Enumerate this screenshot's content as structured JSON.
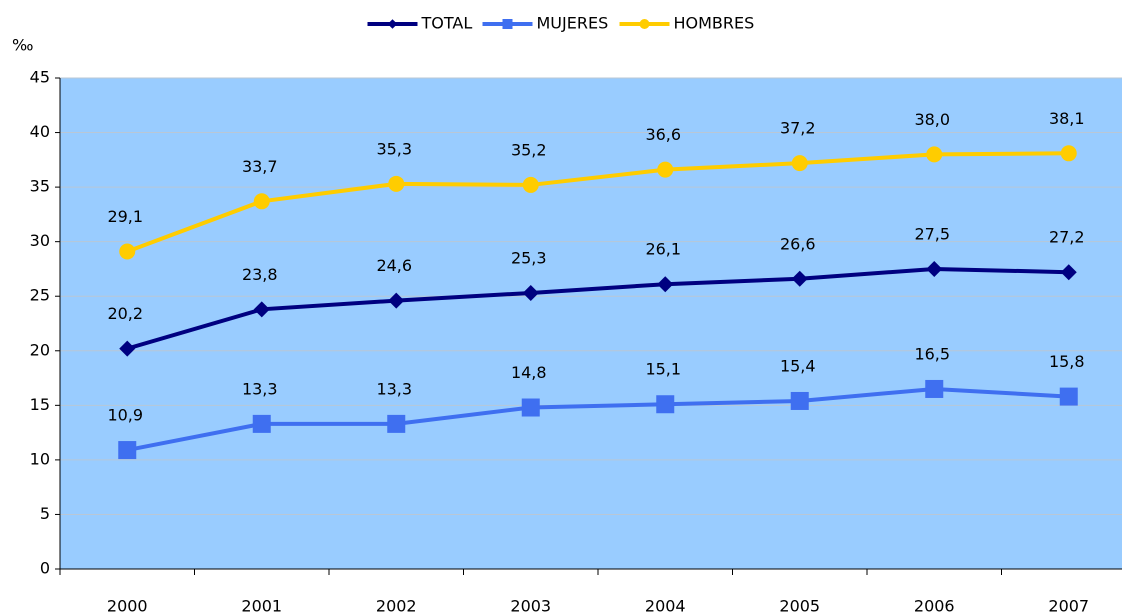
{
  "chart_data": {
    "type": "line",
    "y_label": "‰",
    "categories": [
      "2000",
      "2001",
      "2002",
      "2003",
      "2004",
      "2005",
      "2006",
      "2007"
    ],
    "series": [
      {
        "name": "TOTAL",
        "color": "#000080",
        "marker": "diamond",
        "values": [
          20.2,
          23.8,
          24.6,
          25.3,
          26.1,
          26.6,
          27.5,
          27.2
        ],
        "value_labels": [
          "20,2",
          "23,8",
          "24,6",
          "25,3",
          "26,1",
          "26,6",
          "27,5",
          "27,2"
        ]
      },
      {
        "name": "MUJERES",
        "color": "#3f6ff0",
        "marker": "square",
        "values": [
          10.9,
          13.3,
          13.3,
          14.8,
          15.1,
          15.4,
          16.5,
          15.8
        ],
        "value_labels": [
          "10,9",
          "13,3",
          "13,3",
          "14,8",
          "15,1",
          "15,4",
          "16,5",
          "15,8"
        ]
      },
      {
        "name": "HOMBRES",
        "color": "#ffcc00",
        "marker": "circle",
        "values": [
          29.1,
          33.7,
          35.3,
          35.2,
          36.6,
          37.2,
          38.0,
          38.1
        ],
        "value_labels": [
          "29,1",
          "33,7",
          "35,3",
          "35,2",
          "36,6",
          "37,2",
          "38,0",
          "38,1"
        ]
      }
    ],
    "ylim": [
      0,
      45
    ],
    "yticks": [
      0,
      5,
      10,
      15,
      20,
      25,
      30,
      35,
      40,
      45
    ],
    "grid": true,
    "legend": "top",
    "background": "#99ccff"
  }
}
